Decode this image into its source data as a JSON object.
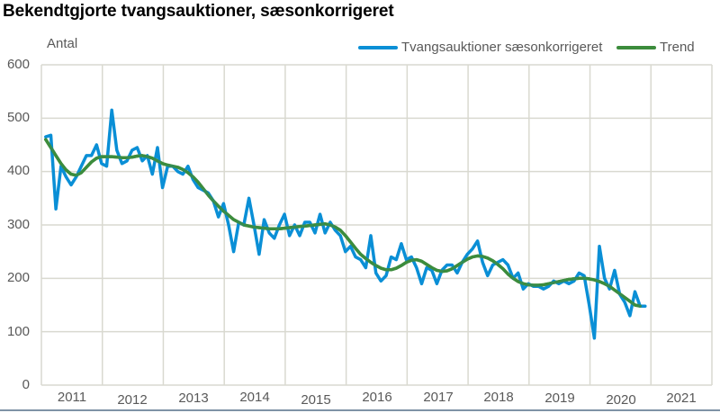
{
  "title": "Bekendtgjorte tvangsauktioner, sæsonkorrigeret",
  "y_axis_label": "Antal",
  "legend": [
    {
      "label": "Tvangsauktioner sæsonkorrigeret",
      "color": "#0A8FD6"
    },
    {
      "label": "Trend",
      "color": "#3C8C3C"
    }
  ],
  "y_ticks": [
    "600",
    "500",
    "400",
    "300",
    "200",
    "100",
    "0"
  ],
  "x_ticks": [
    "2011",
    "2012",
    "2013",
    "2014",
    "2015",
    "2016",
    "2017",
    "2018",
    "2019",
    "2020",
    "2021"
  ],
  "colors": {
    "gridline": "#d9d9d0",
    "axis_text": "#595959",
    "bottom_rule": "#7f93a6"
  },
  "chart_data": {
    "type": "line",
    "title": "Bekendtgjorte tvangsauktioner, sæsonkorrigeret",
    "xlabel": "",
    "ylabel": "Antal",
    "ylim": [
      0,
      600
    ],
    "y_ticks": [
      0,
      100,
      200,
      300,
      400,
      500,
      600
    ],
    "x_ticks": [
      "2011",
      "2012",
      "2013",
      "2014",
      "2015",
      "2016",
      "2017",
      "2018",
      "2019",
      "2020",
      "2021"
    ],
    "grid": {
      "horizontal": true,
      "vertical_year_separators": true
    },
    "legend_position": "top-right",
    "x_start": "2011-01",
    "frequency": "monthly",
    "series": [
      {
        "name": "Tvangsauktioner sæsonkorrigeret",
        "color": "#0A8FD6",
        "values": [
          465,
          468,
          330,
          410,
          390,
          375,
          390,
          410,
          430,
          430,
          450,
          415,
          410,
          515,
          440,
          415,
          420,
          440,
          445,
          420,
          430,
          395,
          445,
          370,
          410,
          410,
          400,
          395,
          410,
          385,
          370,
          365,
          360,
          345,
          315,
          340,
          300,
          250,
          305,
          300,
          350,
          300,
          245,
          310,
          285,
          275,
          300,
          320,
          280,
          300,
          280,
          305,
          305,
          285,
          320,
          285,
          305,
          290,
          280,
          250,
          260,
          240,
          235,
          220,
          280,
          210,
          195,
          205,
          240,
          235,
          265,
          235,
          240,
          220,
          190,
          220,
          215,
          190,
          215,
          225,
          225,
          210,
          230,
          245,
          255,
          270,
          230,
          205,
          225,
          230,
          235,
          225,
          200,
          210,
          180,
          190,
          185,
          185,
          180,
          185,
          195,
          190,
          195,
          190,
          195,
          210,
          205,
          150,
          88,
          260,
          200,
          180,
          215,
          170,
          155,
          130,
          175,
          148,
          148
        ]
      },
      {
        "name": "Trend",
        "color": "#3C8C3C",
        "values": [
          460,
          445,
          430,
          415,
          403,
          395,
          393,
          398,
          408,
          418,
          425,
          428,
          428,
          428,
          427,
          426,
          426,
          427,
          429,
          430,
          428,
          425,
          420,
          415,
          412,
          410,
          408,
          404,
          398,
          390,
          380,
          368,
          356,
          345,
          335,
          326,
          318,
          310,
          305,
          300,
          298,
          296,
          295,
          294,
          293,
          293,
          293,
          294,
          295,
          296,
          297,
          298,
          299,
          300,
          301,
          302,
          300,
          296,
          290,
          280,
          268,
          256,
          245,
          237,
          230,
          224,
          219,
          216,
          216,
          219,
          224,
          230,
          234,
          235,
          232,
          226,
          220,
          215,
          213,
          214,
          218,
          224,
          230,
          236,
          240,
          242,
          241,
          238,
          233,
          226,
          218,
          208,
          200,
          194,
          190,
          188,
          187,
          187,
          188,
          190,
          192,
          194,
          196,
          198,
          199,
          200,
          200,
          199,
          197,
          194,
          190,
          185,
          178,
          171,
          164,
          157,
          150,
          148
        ]
      }
    ]
  }
}
